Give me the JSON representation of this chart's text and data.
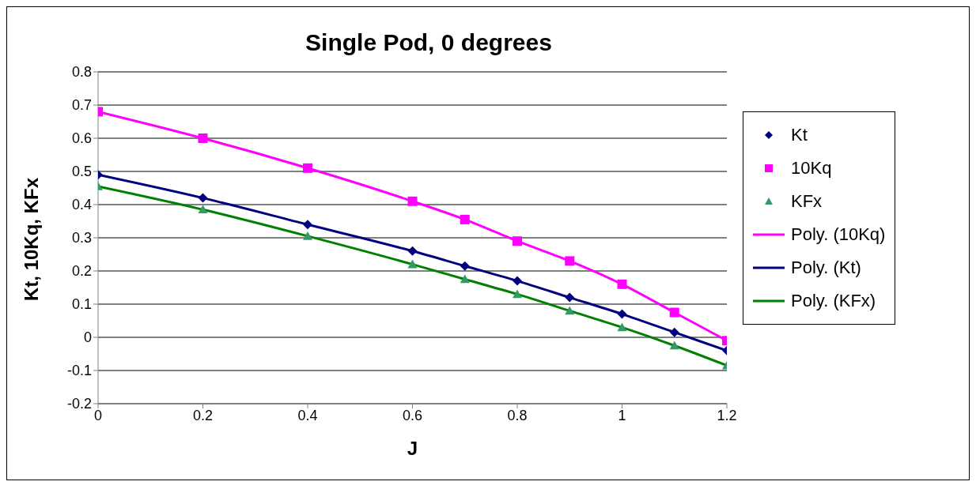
{
  "chart_data": {
    "type": "scatter",
    "title": "Single Pod, 0 degrees",
    "xlabel": "J",
    "ylabel": "Kt, 10Kq, KFx",
    "x": [
      0,
      0.2,
      0.4,
      0.6,
      0.7,
      0.8,
      0.9,
      1.0,
      1.1,
      1.2
    ],
    "series": [
      {
        "name": "Kt",
        "marker": "diamond",
        "color": "#000080",
        "values": [
          0.49,
          0.42,
          0.34,
          0.26,
          0.215,
          0.17,
          0.12,
          0.07,
          0.015,
          -0.04
        ]
      },
      {
        "name": "10Kq",
        "marker": "square",
        "color": "#ff00ff",
        "values": [
          0.68,
          0.6,
          0.51,
          0.41,
          0.355,
          0.29,
          0.23,
          0.16,
          0.075,
          -0.01
        ]
      },
      {
        "name": "KFx",
        "marker": "triangle",
        "color": "#339966",
        "values": [
          0.455,
          0.385,
          0.305,
          0.22,
          0.175,
          0.13,
          0.08,
          0.03,
          -0.025,
          -0.085
        ]
      },
      {
        "name": "Poly. (10Kq)",
        "type": "line",
        "marker": "none",
        "color": "#ff00ff",
        "values": [
          0.68,
          0.6,
          0.51,
          0.41,
          0.355,
          0.29,
          0.23,
          0.16,
          0.075,
          -0.01
        ]
      },
      {
        "name": "Poly. (Kt)",
        "type": "line",
        "marker": "none",
        "color": "#000080",
        "values": [
          0.49,
          0.42,
          0.34,
          0.26,
          0.215,
          0.17,
          0.12,
          0.07,
          0.015,
          -0.04
        ]
      },
      {
        "name": "Poly. (KFx)",
        "type": "line",
        "marker": "none",
        "color": "#008000",
        "values": [
          0.455,
          0.385,
          0.305,
          0.22,
          0.175,
          0.13,
          0.08,
          0.03,
          -0.025,
          -0.085
        ]
      }
    ],
    "xlim": [
      0,
      1.2
    ],
    "xticks": [
      0,
      0.2,
      0.4,
      0.6,
      0.8,
      1,
      1.2
    ],
    "ylim": [
      -0.2,
      0.8
    ],
    "yticks": [
      -0.2,
      -0.1,
      0,
      0.1,
      0.2,
      0.3,
      0.4,
      0.5,
      0.6,
      0.7,
      0.8
    ],
    "grid": "y",
    "legend": "right"
  }
}
